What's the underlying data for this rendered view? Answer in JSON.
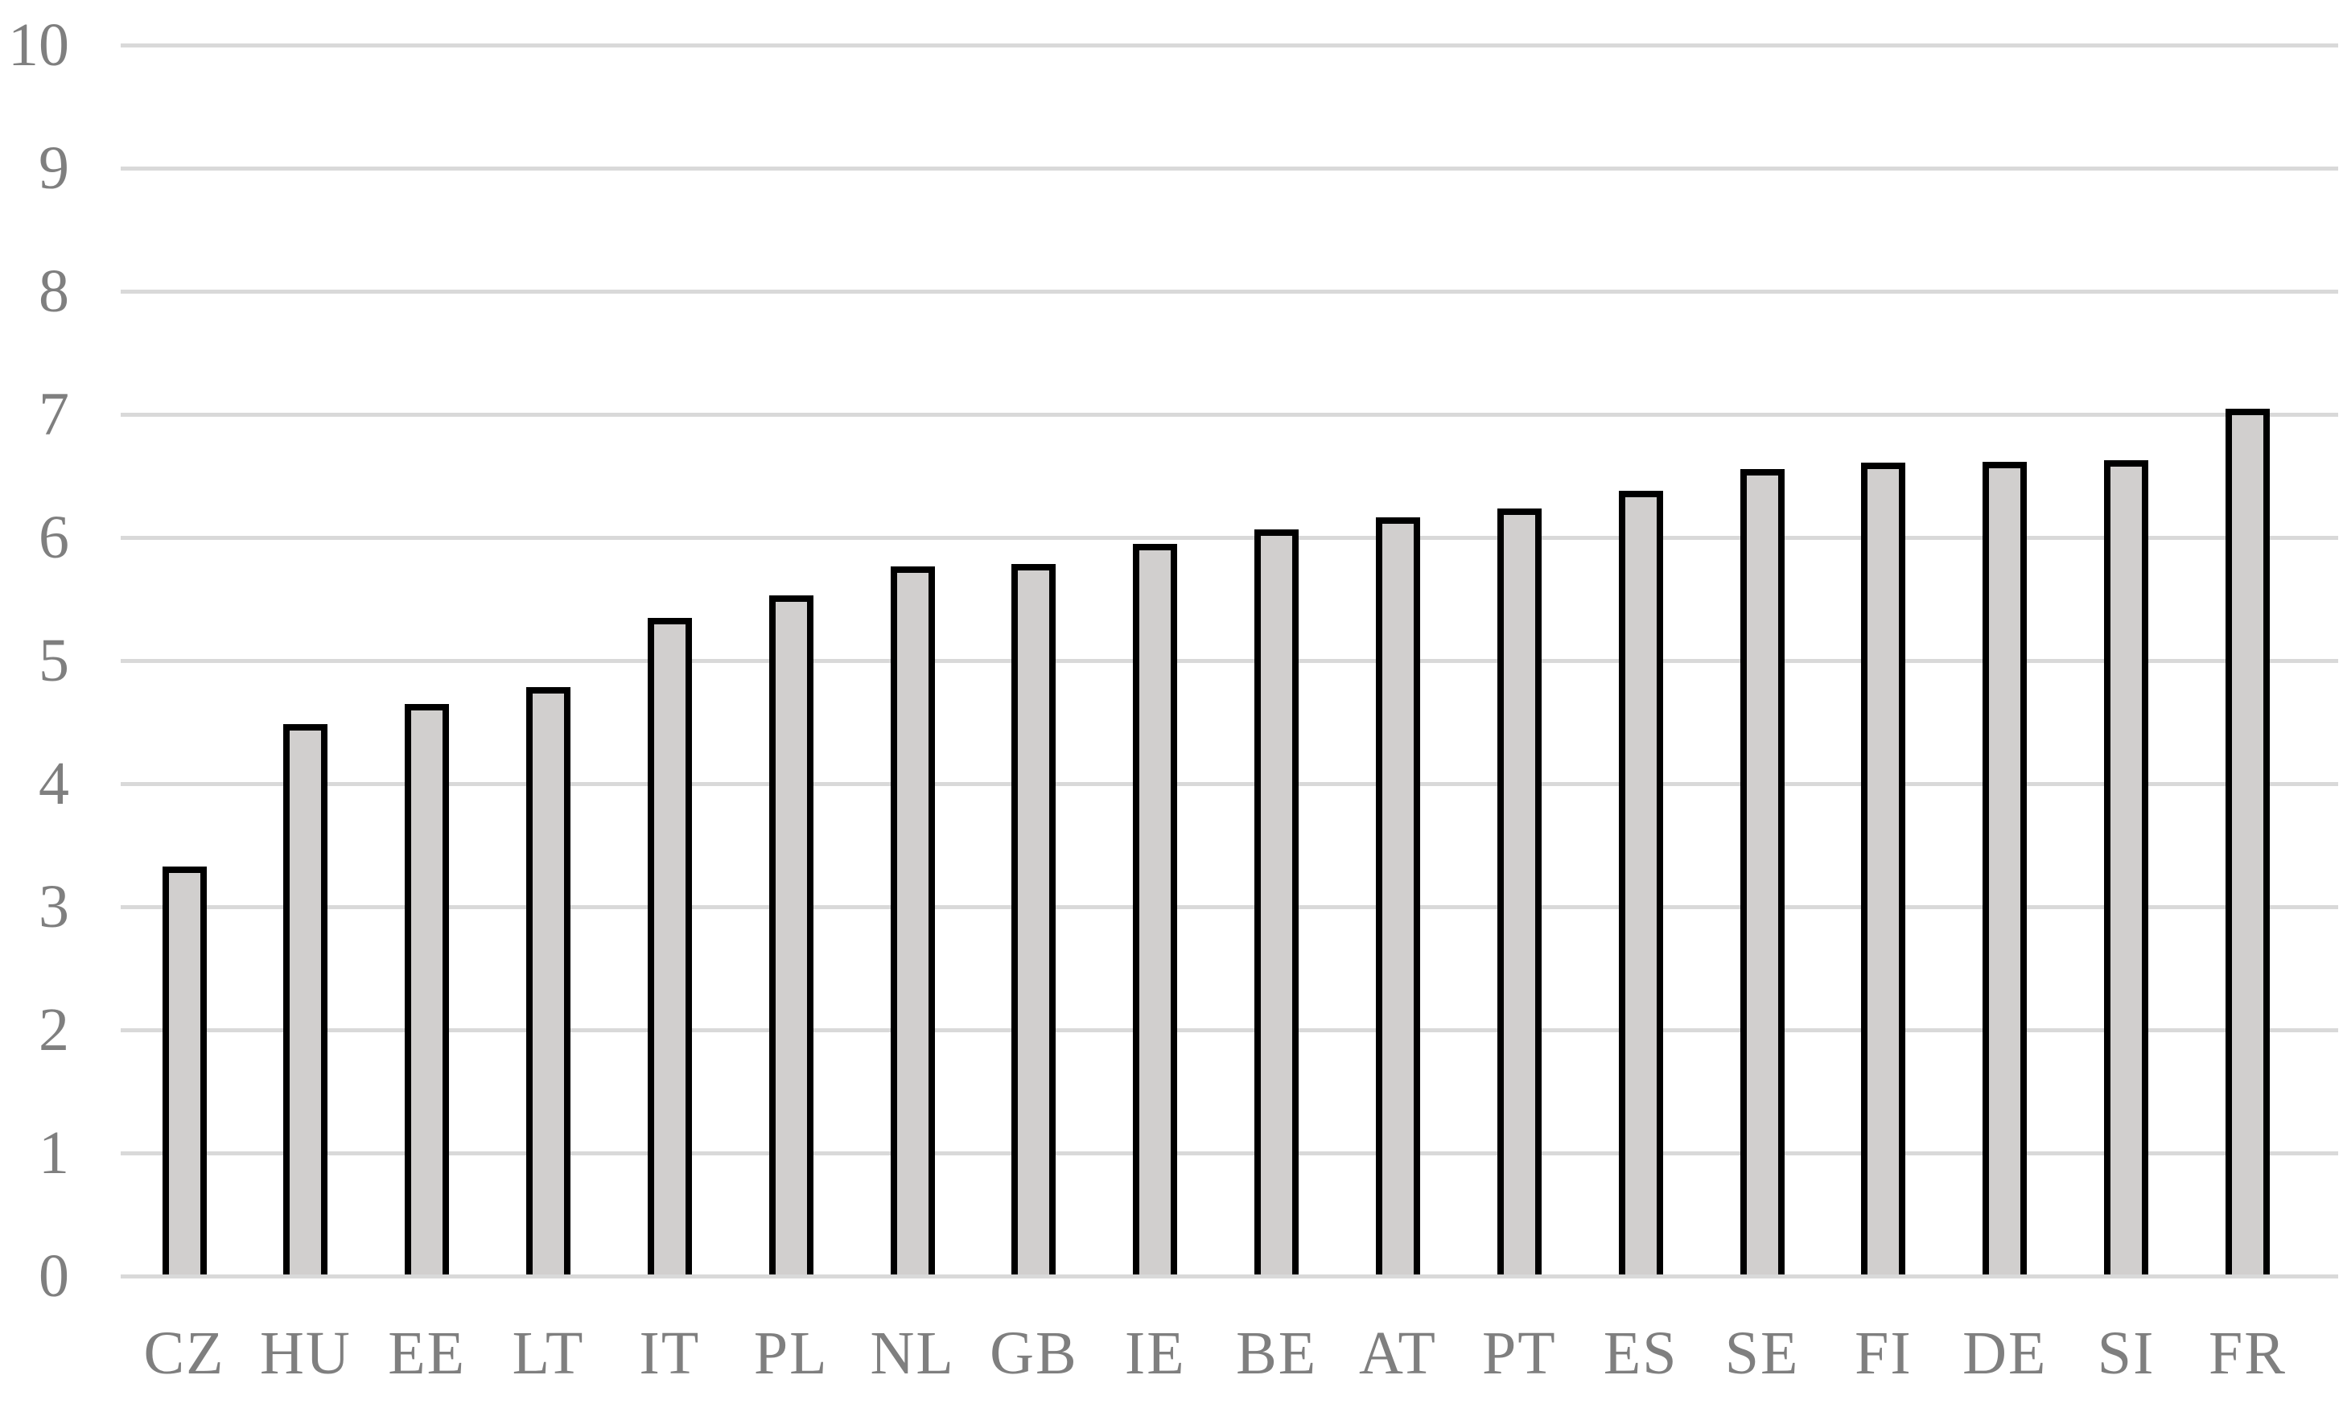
{
  "chart_data": {
    "type": "bar",
    "title": "",
    "xlabel": "",
    "ylabel": "",
    "categories": [
      "CZ",
      "HU",
      "EE",
      "LT",
      "IT",
      "PL",
      "NL",
      "GB",
      "IE",
      "BE",
      "AT",
      "PT",
      "ES",
      "SE",
      "FI",
      "DE",
      "SI",
      "FR"
    ],
    "values": [
      3.3,
      4.46,
      4.62,
      4.76,
      5.32,
      5.5,
      5.74,
      5.76,
      5.92,
      6.04,
      6.14,
      6.21,
      6.35,
      6.53,
      6.58,
      6.59,
      6.6,
      7.02
    ],
    "ylim": [
      0,
      10
    ],
    "yticks": [
      "0",
      "1",
      "2",
      "3",
      "4",
      "5",
      "6",
      "7",
      "8",
      "9",
      "10"
    ],
    "grid": true,
    "legend": false,
    "series_name": "",
    "colors": {
      "bar_fill": "#d1cfce",
      "bar_border": "#000000",
      "gridline": "#d9d9d9",
      "axis_labels": "#7f7f7f",
      "background": "#ffffff"
    }
  }
}
